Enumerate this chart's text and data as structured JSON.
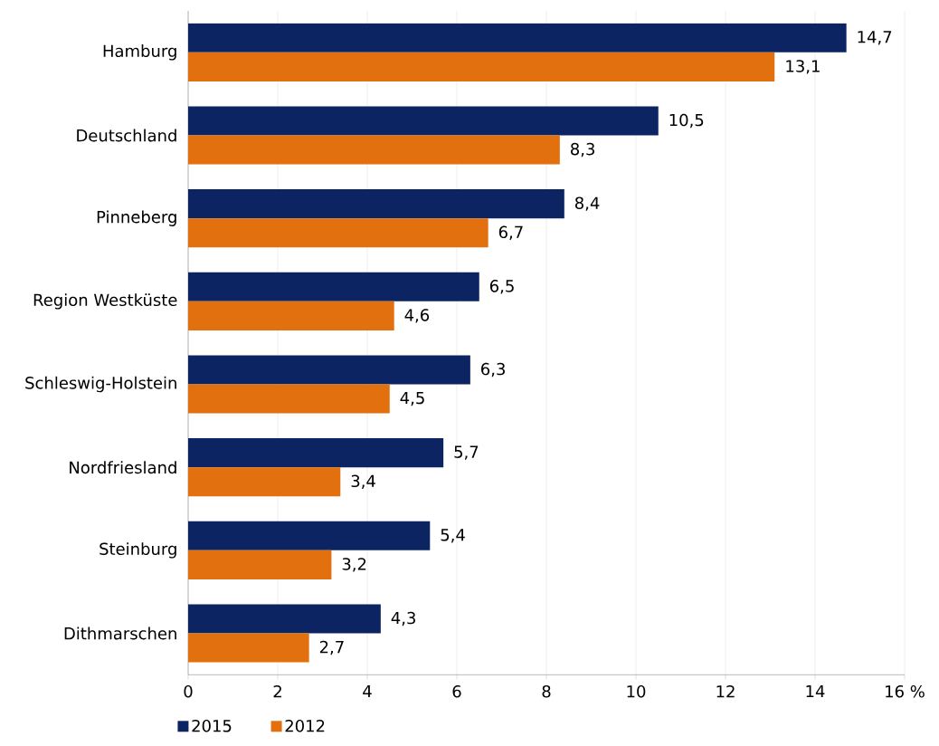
{
  "chart_data": {
    "type": "bar",
    "orientation": "horizontal",
    "categories": [
      "Hamburg",
      "Deutschland",
      "Pinneberg",
      "Region Westküste",
      "Schleswig-Holstein",
      "Nordfriesland",
      "Steinburg",
      "Dithmarschen"
    ],
    "series": [
      {
        "name": "2015",
        "color": "#0c2461",
        "values": [
          14.7,
          10.5,
          8.4,
          6.5,
          6.3,
          5.7,
          5.4,
          4.3
        ],
        "value_labels": [
          "14,7",
          "10,5",
          "8,4",
          "6,5",
          "6,3",
          "5,7",
          "5,4",
          "4,3"
        ]
      },
      {
        "name": "2012",
        "color": "#e2700f",
        "values": [
          13.1,
          8.3,
          6.7,
          4.6,
          4.5,
          3.4,
          3.2,
          2.7
        ],
        "value_labels": [
          "13,1",
          "8,3",
          "6,7",
          "4,6",
          "4,5",
          "3,4",
          "3,2",
          "2,7"
        ]
      }
    ],
    "xlim": [
      0,
      16
    ],
    "xticks": [
      0,
      2,
      4,
      6,
      8,
      10,
      12,
      14,
      {
        "value": 16,
        "label": "16 %"
      }
    ],
    "grid": "x",
    "legend": "bottom left"
  }
}
